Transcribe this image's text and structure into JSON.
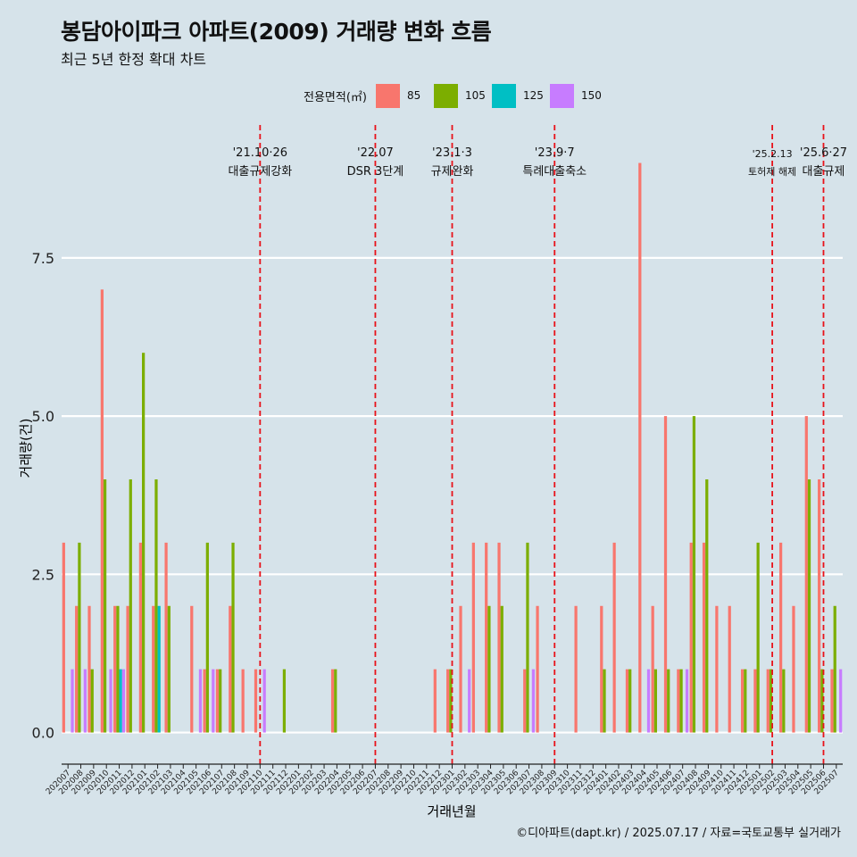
{
  "title": "봉담아이파크 아파트(2009) 거래량 변화 흐름",
  "subtitle": "최근 5년 한정 확대 차트",
  "caption": "©디아파트(dapt.kr) / 2025.07.17 / 자료=국토교통부 실거래가",
  "legend": {
    "title": "전용면적(㎡)",
    "items": [
      {
        "label": "85",
        "color": "#f8766d"
      },
      {
        "label": "105",
        "color": "#7cae00"
      },
      {
        "label": "125",
        "color": "#00bfc4"
      },
      {
        "label": "150",
        "color": "#c77cff"
      }
    ]
  },
  "chart_data": {
    "type": "bar",
    "xlabel": "거래년월",
    "ylabel": "거래량(건)",
    "ylim": [
      -0.5,
      9.6
    ],
    "yticks": [
      "0.0",
      "2.5",
      "5.0",
      "7.5"
    ],
    "ytick_values": [
      0,
      2.5,
      5,
      7.5
    ],
    "grid": true,
    "legend_position": "top",
    "x": [
      "202007",
      "202008",
      "202009",
      "202010",
      "202011",
      "202012",
      "202101",
      "202102",
      "202103",
      "202104",
      "202105",
      "202106",
      "202107",
      "202108",
      "202109",
      "202110",
      "202111",
      "202112",
      "202201",
      "202202",
      "202203",
      "202204",
      "202205",
      "202206",
      "202207",
      "202208",
      "202209",
      "202210",
      "202211",
      "202212",
      "202301",
      "202302",
      "202303",
      "202304",
      "202305",
      "202306",
      "202307",
      "202308",
      "202309",
      "202310",
      "202311",
      "202312",
      "202401",
      "202402",
      "202403",
      "202404",
      "202405",
      "202406",
      "202407",
      "202408",
      "202409",
      "202410",
      "202411",
      "202412",
      "202501",
      "202502",
      "202503",
      "202504",
      "202505",
      "202506",
      "202507"
    ],
    "series": [
      {
        "name": "85",
        "values": [
          3,
          2,
          2,
          7,
          2,
          2,
          3,
          2,
          3,
          0,
          2,
          1,
          1,
          2,
          1,
          1,
          0,
          0,
          0,
          0,
          0,
          1,
          0,
          0,
          0,
          0,
          0,
          0,
          0,
          1,
          1,
          2,
          3,
          3,
          3,
          0,
          1,
          2,
          0,
          0,
          2,
          0,
          2,
          3,
          1,
          9,
          2,
          5,
          1,
          3,
          3,
          2,
          2,
          1,
          1,
          1,
          3,
          2,
          5,
          4,
          1
        ]
      },
      {
        "name": "105",
        "values": [
          0,
          3,
          1,
          4,
          2,
          4,
          6,
          4,
          2,
          0,
          0,
          3,
          1,
          3,
          0,
          0,
          0,
          1,
          0,
          0,
          0,
          1,
          0,
          0,
          0,
          0,
          0,
          0,
          0,
          0,
          1,
          0,
          0,
          2,
          2,
          0,
          3,
          0,
          0,
          0,
          0,
          0,
          1,
          0,
          1,
          0,
          1,
          1,
          1,
          5,
          4,
          0,
          0,
          1,
          3,
          1,
          1,
          0,
          4,
          1,
          2
        ]
      },
      {
        "name": "125",
        "values": [
          0,
          0,
          0,
          0,
          1,
          0,
          0,
          2,
          0,
          0,
          0,
          0,
          0,
          0,
          0,
          0,
          0,
          0,
          0,
          0,
          0,
          0,
          0,
          0,
          0,
          0,
          0,
          0,
          0,
          0,
          0,
          0,
          0,
          0,
          0,
          0,
          0,
          0,
          0,
          0,
          0,
          0,
          0,
          0,
          0,
          0,
          0,
          0,
          0,
          0,
          0,
          0,
          0,
          0,
          0,
          0,
          0,
          0,
          0,
          0,
          0
        ]
      },
      {
        "name": "150",
        "values": [
          1,
          1,
          0,
          1,
          1,
          0,
          0,
          0,
          0,
          0,
          1,
          1,
          0,
          0,
          0,
          1,
          0,
          0,
          0,
          0,
          0,
          0,
          0,
          0,
          0,
          0,
          0,
          0,
          0,
          0,
          0,
          1,
          0,
          0,
          0,
          0,
          1,
          0,
          0,
          0,
          0,
          0,
          0,
          0,
          0,
          1,
          0,
          0,
          1,
          0,
          0,
          0,
          0,
          0,
          0,
          0,
          0,
          0,
          0,
          0,
          1
        ]
      }
    ],
    "annotations": [
      {
        "date": "'21.10·26",
        "text": "대출규제강화",
        "month": "202110"
      },
      {
        "date": "'22.07",
        "text": "DSR 3단계",
        "month": "202207"
      },
      {
        "date": "'23.1·3",
        "text": "규제완화",
        "month": "202301"
      },
      {
        "date": "'23.9·7",
        "text": "특례대출축소",
        "month": "202309"
      },
      {
        "date": "'25.2.13",
        "text": "토허제 해제",
        "month": "202502"
      },
      {
        "date": "'25.6·27",
        "text": "대출규제",
        "month": "202506"
      }
    ]
  }
}
